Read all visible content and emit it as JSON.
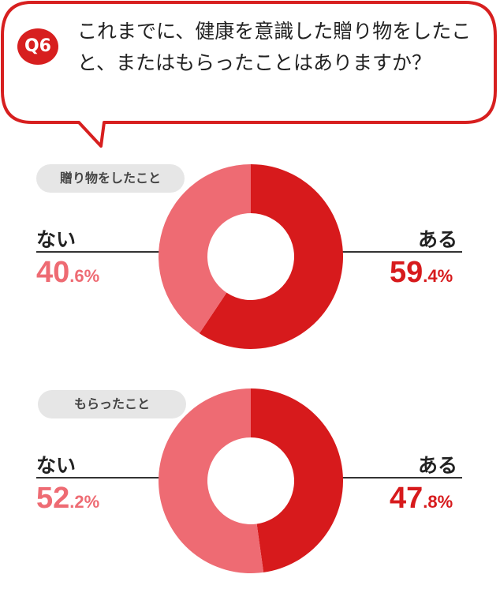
{
  "question": {
    "badge": "Q6",
    "text": "これまでに、健康を意識した贈り物をしたこと、またはもらったことはありますか？"
  },
  "colors": {
    "yes": "#d71a1c",
    "no": "#ee6b73",
    "badge": "#d71f1f",
    "bubble_border": "#d71f1f"
  },
  "chart_data": [
    {
      "type": "pie",
      "title": "贈り物をしたこと",
      "categories": [
        "ある",
        "ない"
      ],
      "values": [
        59.4,
        40.6
      ],
      "labels": [
        {
          "name": "ある",
          "int": "59",
          "dec": ".4%"
        },
        {
          "name": "ない",
          "int": "40",
          "dec": ".6%"
        }
      ]
    },
    {
      "type": "pie",
      "title": "もらったこと",
      "categories": [
        "ある",
        "ない"
      ],
      "values": [
        47.8,
        52.2
      ],
      "labels": [
        {
          "name": "ある",
          "int": "47",
          "dec": ".8%"
        },
        {
          "name": "ない",
          "int": "52",
          "dec": ".2%"
        }
      ]
    }
  ]
}
